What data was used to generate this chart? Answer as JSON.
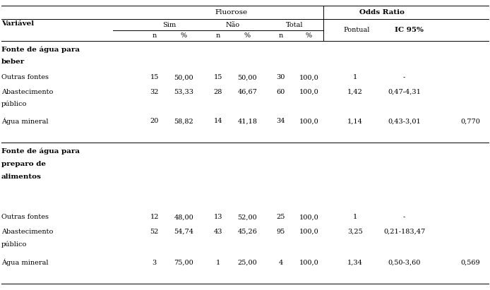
{
  "figsize": [
    6.94,
    4.11
  ],
  "dpi": 100,
  "bg_color": "#ffffff",
  "line_color": "#000000",
  "text_color": "#000000",
  "font_size": 7.0,
  "font_size_bold": 7.5,
  "col_x": {
    "label": 0.003,
    "sim_n": 0.3,
    "sim_pct": 0.36,
    "nao_n": 0.43,
    "nao_pct": 0.49,
    "tot_n": 0.558,
    "tot_pct": 0.615,
    "pontual": 0.71,
    "ic": 0.81,
    "pvalue": 0.96
  },
  "rows": [
    {
      "label1": "Outras fontes",
      "label2": "",
      "sim_n": "15",
      "sim_pct": "50,00",
      "nao_n": "15",
      "nao_pct": "50,00",
      "tot_n": "30",
      "tot_pct": "100,0",
      "pontual": "1",
      "ic": "-",
      "pvalue": ""
    },
    {
      "label1": "Abastecimento",
      "label2": "público",
      "sim_n": "32",
      "sim_pct": "53,33",
      "nao_n": "28",
      "nao_pct": "46,67",
      "tot_n": "60",
      "tot_pct": "100,0",
      "pontual": "1,42",
      "ic": "0,47-4,31",
      "pvalue": ""
    },
    {
      "label1": "Água mineral",
      "label2": "",
      "sim_n": "20",
      "sim_pct": "58,82",
      "nao_n": "14",
      "nao_pct": "41,18",
      "tot_n": "34",
      "tot_pct": "100,0",
      "pontual": "1,14",
      "ic": "0,43-3,01",
      "pvalue": "0,770"
    },
    {
      "label1": "Outras fontes",
      "label2": "",
      "sim_n": "12",
      "sim_pct": "48,00",
      "nao_n": "13",
      "nao_pct": "52,00",
      "tot_n": "25",
      "tot_pct": "100,0",
      "pontual": "1",
      "ic": "-",
      "pvalue": ""
    },
    {
      "label1": "Abastecimento",
      "label2": "público",
      "sim_n": "52",
      "sim_pct": "54,74",
      "nao_n": "43",
      "nao_pct": "45,26",
      "tot_n": "95",
      "tot_pct": "100,0",
      "pontual": "3,25",
      "ic": "0,21-183,47",
      "pvalue": ""
    },
    {
      "label1": "Água mineral",
      "label2": "",
      "sim_n": "3",
      "sim_pct": "75,00",
      "nao_n": "1",
      "nao_pct": "25,00",
      "tot_n": "4",
      "tot_pct": "100,0",
      "pontual": "1,34",
      "ic": "0,50-3,60",
      "pvalue": "0,569"
    }
  ]
}
